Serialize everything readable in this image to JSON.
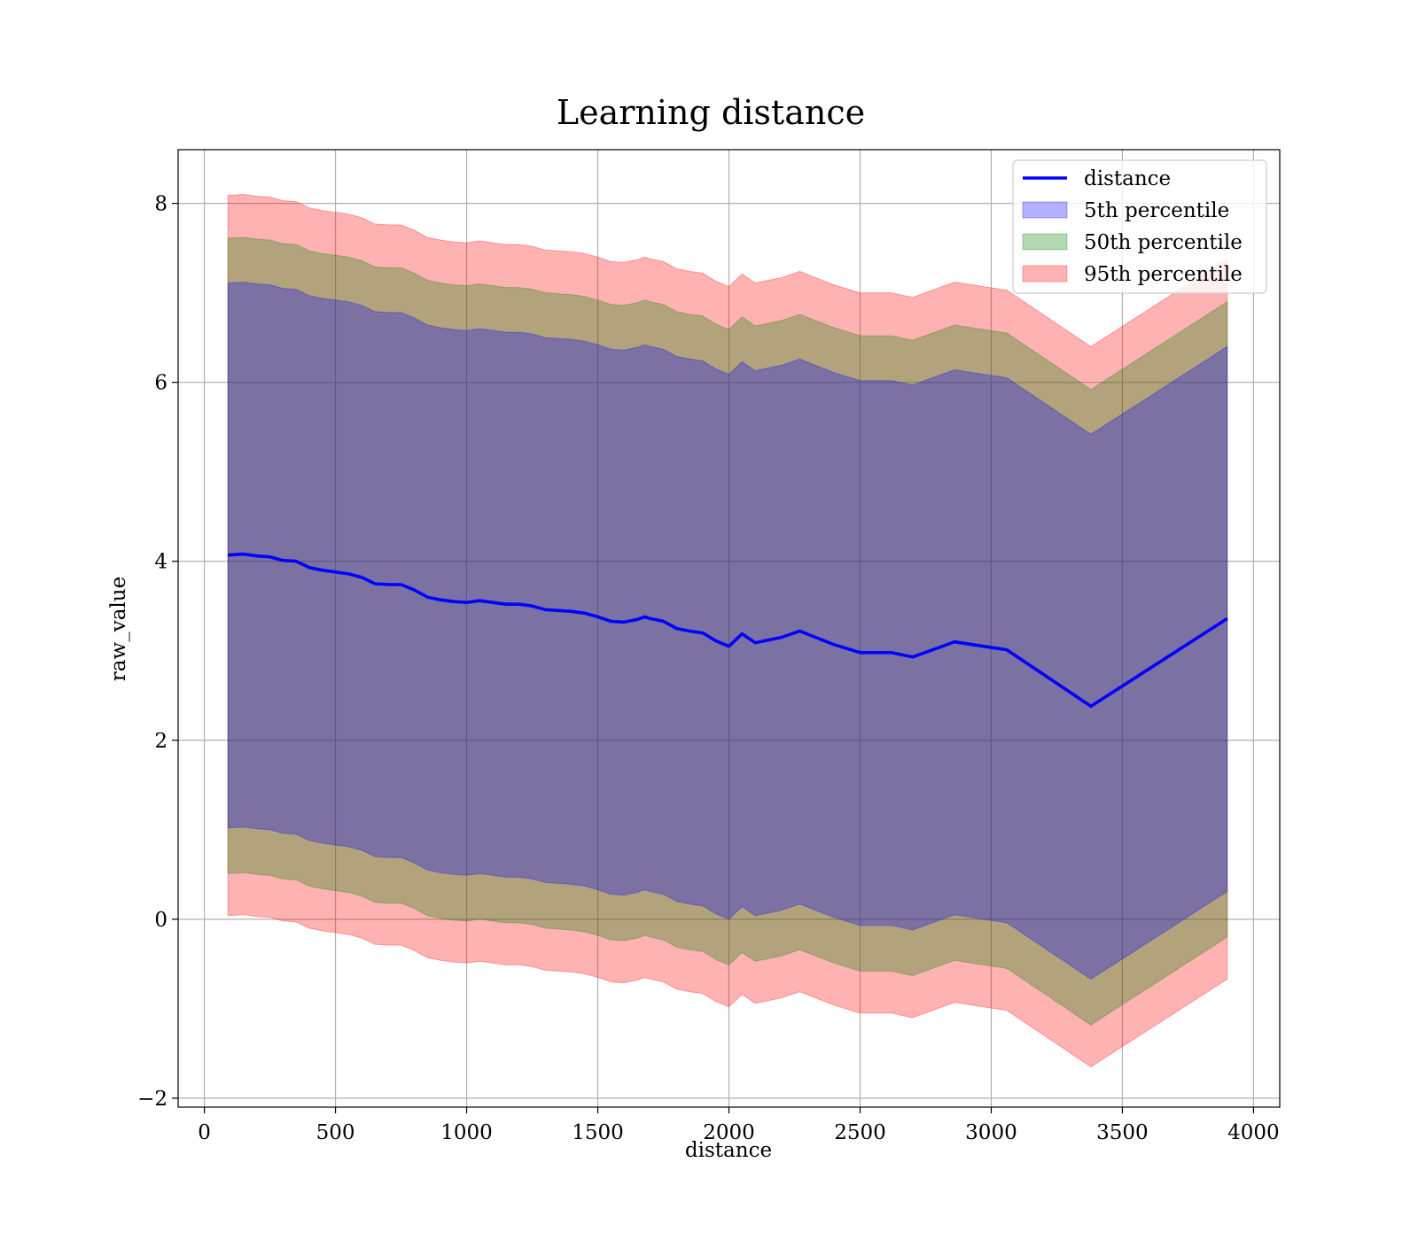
{
  "chart_data": {
    "type": "line",
    "title": "Learning distance",
    "xlabel": "distance",
    "ylabel": "raw_value",
    "xlim": [
      -100,
      4100
    ],
    "ylim": [
      -2.1,
      8.6
    ],
    "xticks": [
      0,
      500,
      1000,
      1500,
      2000,
      2500,
      3000,
      3500,
      4000
    ],
    "xtick_labels": [
      "0",
      "500",
      "1000",
      "1500",
      "2000",
      "2500",
      "3000",
      "3500",
      "4000"
    ],
    "yticks": [
      -2,
      0,
      2,
      4,
      6,
      8
    ],
    "ytick_labels": [
      "−2",
      "0",
      "2",
      "4",
      "6",
      "8"
    ],
    "grid": true,
    "legend_position": "top-right",
    "legend": [
      {
        "label": "distance",
        "kind": "line",
        "color": "#0000ff"
      },
      {
        "label": "5th percentile",
        "kind": "patch",
        "color": "#0000ff"
      },
      {
        "label": "50th percentile",
        "kind": "patch",
        "color": "#008000"
      },
      {
        "label": "95th percentile",
        "kind": "patch",
        "color": "#ff0000"
      }
    ],
    "x": [
      90,
      150,
      200,
      250,
      300,
      350,
      400,
      450,
      500,
      550,
      600,
      650,
      700,
      750,
      800,
      850,
      900,
      950,
      1000,
      1050,
      1100,
      1150,
      1200,
      1250,
      1300,
      1400,
      1450,
      1500,
      1550,
      1600,
      1650,
      1680,
      1700,
      1750,
      1800,
      1850,
      1900,
      1950,
      2000,
      2050,
      2100,
      2150,
      2200,
      2270,
      2400,
      2500,
      2620,
      2700,
      2860,
      3060,
      3380,
      3900
    ],
    "series": [
      {
        "name": "distance",
        "color": "#0000ff",
        "values": [
          4.07,
          4.08,
          4.06,
          4.05,
          4.01,
          4.0,
          3.93,
          3.9,
          3.88,
          3.86,
          3.82,
          3.75,
          3.74,
          3.74,
          3.68,
          3.6,
          3.57,
          3.55,
          3.54,
          3.56,
          3.54,
          3.52,
          3.52,
          3.5,
          3.46,
          3.44,
          3.42,
          3.38,
          3.33,
          3.32,
          3.35,
          3.38,
          3.36,
          3.33,
          3.25,
          3.22,
          3.2,
          3.11,
          3.05,
          3.19,
          3.09,
          3.12,
          3.15,
          3.22,
          3.07,
          2.98,
          2.98,
          2.93,
          3.1,
          3.01,
          2.38,
          3.36
        ]
      }
    ],
    "bands": [
      {
        "name": "95th percentile",
        "color": "#ff0000",
        "alpha": 0.3,
        "lower_offset": -4.03,
        "upper_offset": 4.02
      },
      {
        "name": "50th percentile",
        "color": "#008000",
        "alpha": 0.3,
        "lower_offset": -3.56,
        "upper_offset": 3.54
      },
      {
        "name": "5th percentile",
        "color": "#0000ff",
        "alpha": 0.3,
        "lower_offset": -3.05,
        "upper_offset": 3.04
      }
    ]
  }
}
